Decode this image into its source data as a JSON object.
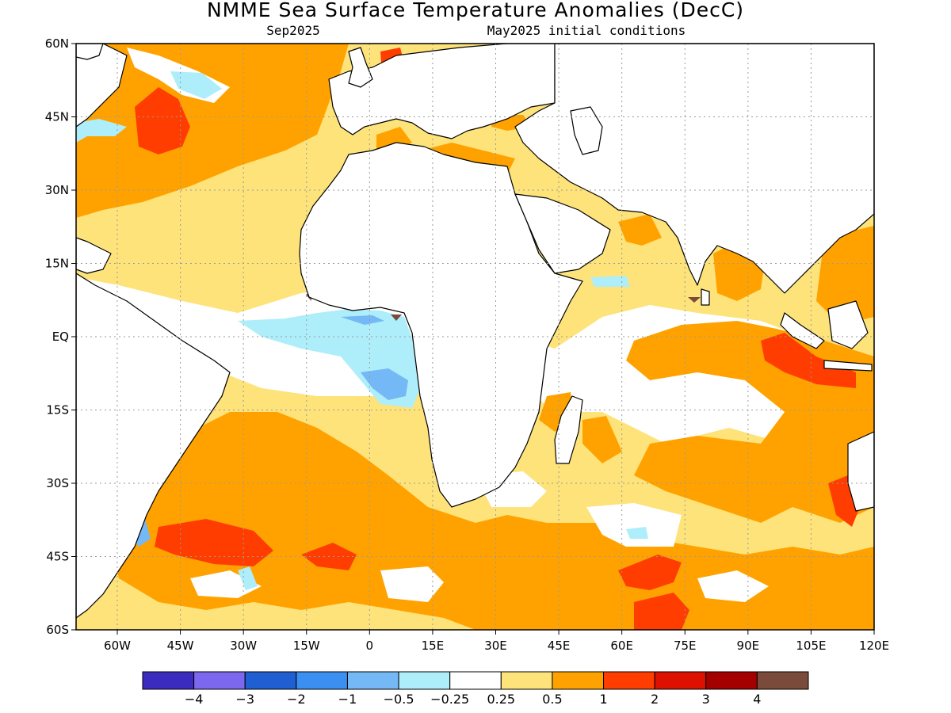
{
  "title": "NMME Sea Surface Temperature Anomalies (DecC)",
  "target_month": "Sep2025",
  "initial_conditions": "May2025 initial conditions",
  "lat_ticks": [
    "60N",
    "45N",
    "30N",
    "15N",
    "EQ",
    "15S",
    "30S",
    "45S",
    "60S"
  ],
  "lon_ticks": [
    "60W",
    "45W",
    "30W",
    "15W",
    "0",
    "15E",
    "30E",
    "45E",
    "60E",
    "75E",
    "90E",
    "105E",
    "120E"
  ],
  "colorbar": {
    "colors": [
      "#3b2bbf",
      "#7b68ee",
      "#1f5fd1",
      "#3a8ff0",
      "#74b8f5",
      "#aeeefa",
      "#ffffff",
      "#fde37a",
      "#ffa200",
      "#ff3d00",
      "#dd1100",
      "#a50000",
      "#7a4b3b"
    ],
    "labels": [
      "−4",
      "−3",
      "−2",
      "−1",
      "−0.5",
      "−0.25",
      "0.25",
      "0.5",
      "1",
      "2",
      "3",
      "4"
    ]
  },
  "fill_colors": {
    "weak_warm": "#fde37a",
    "warm": "#ffa200",
    "strong_warm": "#ff3d00",
    "weak_cool": "#aeeefa",
    "cool": "#74b8f5",
    "cool_mid": "#3a8ff0",
    "brown": "#7a4b3b",
    "land": "#ffffff"
  }
}
